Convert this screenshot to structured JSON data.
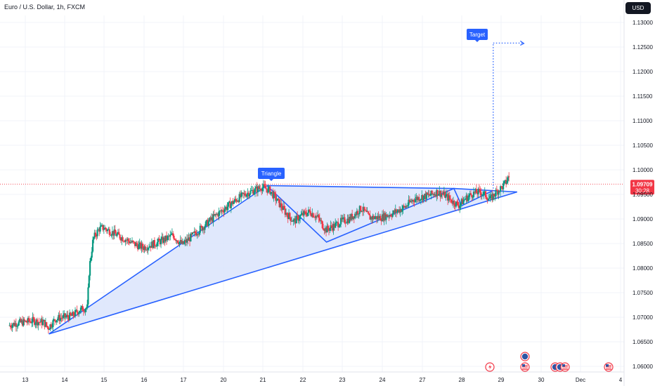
{
  "header": {
    "symbol_title": "Euro / U.S. Dollar, 1h, FXCM",
    "currency_button": "USD"
  },
  "colors": {
    "up": "#089981",
    "down": "#f23645",
    "pattern_line": "#2962ff",
    "pattern_fill": "#dbe4fb",
    "label_bg": "#2962ff",
    "price_line": "#f23645",
    "grid": "#f0f3fa"
  },
  "chart_data": {
    "type": "candlestick",
    "title": "Euro / U.S. Dollar, 1h, FXCM",
    "y_axis": {
      "ticks": [
        "1.13000",
        "1.12500",
        "1.12000",
        "1.11500",
        "1.11000",
        "1.10500",
        "1.10000",
        "1.09500",
        "1.09000",
        "1.08500",
        "1.08000",
        "1.07500",
        "1.07000",
        "1.06500",
        "1.06000"
      ],
      "range": [
        1.0592,
        1.1318
      ]
    },
    "x_axis": {
      "ticks": [
        "13",
        "14",
        "15",
        "16",
        "17",
        "20",
        "21",
        "22",
        "23",
        "24",
        "27",
        "28",
        "29",
        "30",
        "Dec",
        "4"
      ],
      "range": [
        12.6,
        16.15
      ]
    },
    "price_path": [
      [
        12.6,
        1.0683
      ],
      [
        12.8,
        1.0688
      ],
      [
        13.0,
        1.069
      ],
      [
        13.2,
        1.0693
      ],
      [
        13.5,
        1.0689
      ],
      [
        13.6,
        1.0678
      ],
      [
        13.8,
        1.0697
      ],
      [
        14.0,
        1.07
      ],
      [
        14.2,
        1.0702
      ],
      [
        14.4,
        1.0715
      ],
      [
        14.6,
        1.072
      ],
      [
        14.65,
        1.08
      ],
      [
        14.75,
        1.086
      ],
      [
        14.9,
        1.088
      ],
      [
        15.0,
        1.0882
      ],
      [
        15.2,
        1.0874
      ],
      [
        15.4,
        1.0865
      ],
      [
        15.6,
        1.0857
      ],
      [
        15.8,
        1.0848
      ],
      [
        16.0,
        1.0842
      ],
      [
        16.3,
        1.085
      ],
      [
        16.6,
        1.086
      ],
      [
        16.75,
        1.0867
      ],
      [
        16.9,
        1.0855
      ],
      [
        17.0,
        1.0848
      ],
      [
        17.2,
        1.0862
      ],
      [
        17.4,
        1.0877
      ],
      [
        17.6,
        1.089
      ],
      [
        17.8,
        1.0905
      ],
      [
        18.0,
        1.0918
      ],
      [
        18.2,
        1.093
      ],
      [
        18.4,
        1.0942
      ],
      [
        18.6,
        1.0952
      ],
      [
        18.8,
        1.0958
      ],
      [
        19.0,
        1.0965
      ],
      [
        19.2,
        1.0958
      ],
      [
        19.4,
        1.0935
      ],
      [
        19.6,
        1.0912
      ],
      [
        19.8,
        1.0895
      ],
      [
        20.0,
        1.0908
      ],
      [
        20.2,
        1.0915
      ],
      [
        20.4,
        1.0903
      ],
      [
        20.6,
        1.0878
      ],
      [
        20.8,
        1.0885
      ],
      [
        21.0,
        1.0895
      ],
      [
        21.2,
        1.09
      ],
      [
        21.5,
        1.0922
      ],
      [
        21.7,
        1.0903
      ],
      [
        22.0,
        1.0903
      ],
      [
        22.3,
        1.0912
      ],
      [
        22.6,
        1.0925
      ],
      [
        22.8,
        1.094
      ],
      [
        23.0,
        1.0945
      ],
      [
        23.2,
        1.0948
      ],
      [
        23.4,
        1.0955
      ],
      [
        23.6,
        1.0948
      ],
      [
        23.8,
        1.0935
      ],
      [
        23.95,
        1.0928
      ],
      [
        24.1,
        1.094
      ],
      [
        24.3,
        1.0952
      ],
      [
        24.5,
        1.0955
      ],
      [
        24.6,
        1.095
      ],
      [
        24.75,
        1.094
      ],
      [
        24.9,
        1.0955
      ],
      [
        25.05,
        1.0965
      ],
      [
        25.15,
        1.0975
      ],
      [
        25.2,
        1.0985
      ]
    ],
    "annotations": [
      {
        "type": "label",
        "text": "Triangle"
      },
      {
        "type": "label",
        "text": "Target"
      }
    ],
    "triangle": {
      "points": [
        [
          13.6,
          1.0666
        ],
        [
          19.1,
          1.0968
        ],
        [
          23.8,
          1.0962
        ],
        [
          25.4,
          1.0955
        ]
      ],
      "inner_zigzag": [
        [
          19.1,
          1.0968
        ],
        [
          20.6,
          1.0853
        ],
        [
          23.8,
          1.0962
        ],
        [
          24.0,
          1.0927
        ],
        [
          24.8,
          1.0958
        ]
      ]
    },
    "target": {
      "from": [
        24.8,
        1.0962
      ],
      "to": [
        24.8,
        1.1258
      ],
      "end": [
        25.55,
        1.1258
      ]
    },
    "current_price": {
      "value": "1.09709",
      "countdown": "30:28",
      "level": 1.0971
    },
    "events": [
      {
        "date": 28.6,
        "icon": "flash-icon"
      },
      {
        "date": 29.3,
        "icon": "us-flag-icon",
        "stacked": 2
      },
      {
        "date": 30.35,
        "icon": "us-flag-icon",
        "stacked": 1
      },
      {
        "date": 30.55,
        "icon": "us-flag-icon",
        "stacked": 1
      },
      {
        "date": 31.3,
        "icon": "us-flag-icon",
        "stacked": 1
      }
    ]
  }
}
